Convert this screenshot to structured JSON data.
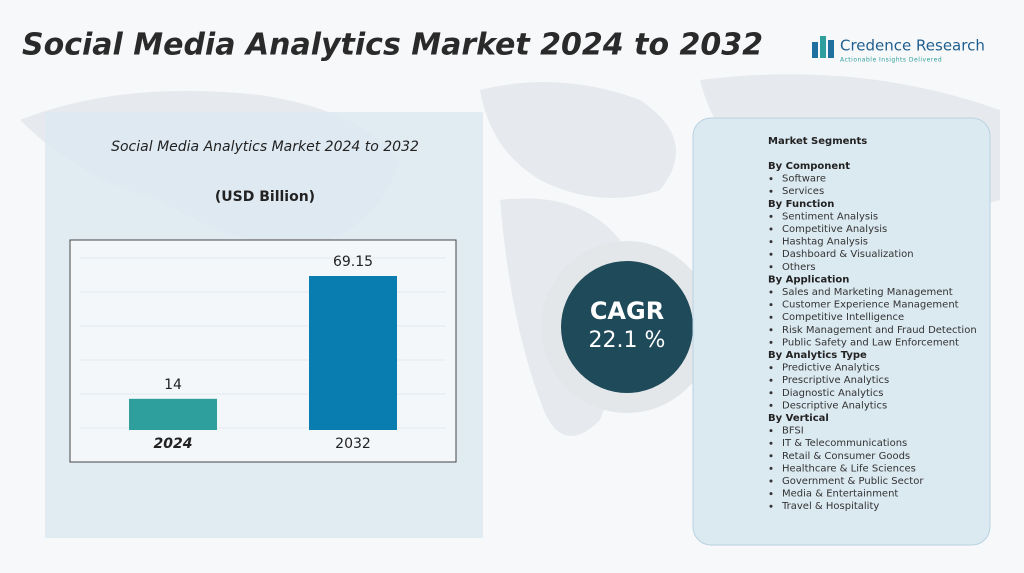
{
  "header": {
    "title": "Social Media Analytics Market 2024 to 2032",
    "brand": "Credence Research",
    "tagline": "Actionable Insights Delivered"
  },
  "chart_data": {
    "type": "bar",
    "title": "Social Media Analytics Market 2024 to 2032",
    "subtitle": "(USD Billion)",
    "categories": [
      "2024",
      "2032"
    ],
    "values": [
      14,
      69.15
    ],
    "colors": [
      "#2e9f9c",
      "#0a7db0"
    ],
    "grid": true
  },
  "cagr": {
    "label": "CAGR",
    "value": "22.1 %"
  },
  "segments": {
    "title": "Market Segments",
    "groups": [
      {
        "name": "By Component",
        "items": [
          "Software",
          "Services"
        ]
      },
      {
        "name": "By Function",
        "items": [
          "Sentiment Analysis",
          "Competitive Analysis",
          "Hashtag Analysis",
          "Dashboard & Visualization",
          "Others"
        ]
      },
      {
        "name": "By Application",
        "items": [
          "Sales and Marketing Management",
          "Customer Experience Management",
          "Competitive Intelligence",
          "Risk Management and Fraud Detection",
          "Public Safety and Law Enforcement"
        ]
      },
      {
        "name": "By Analytics Type",
        "items": [
          "Predictive Analytics",
          "Prescriptive Analytics",
          "Diagnostic Analytics",
          "Descriptive Analytics"
        ]
      },
      {
        "name": "By Vertical",
        "items": [
          "BFSI",
          "IT & Telecommunications",
          "Retail & Consumer Goods",
          "Healthcare & Life Sciences",
          "Government & Public Sector",
          "Media & Entertainment",
          "Travel & Hospitality"
        ]
      }
    ]
  }
}
